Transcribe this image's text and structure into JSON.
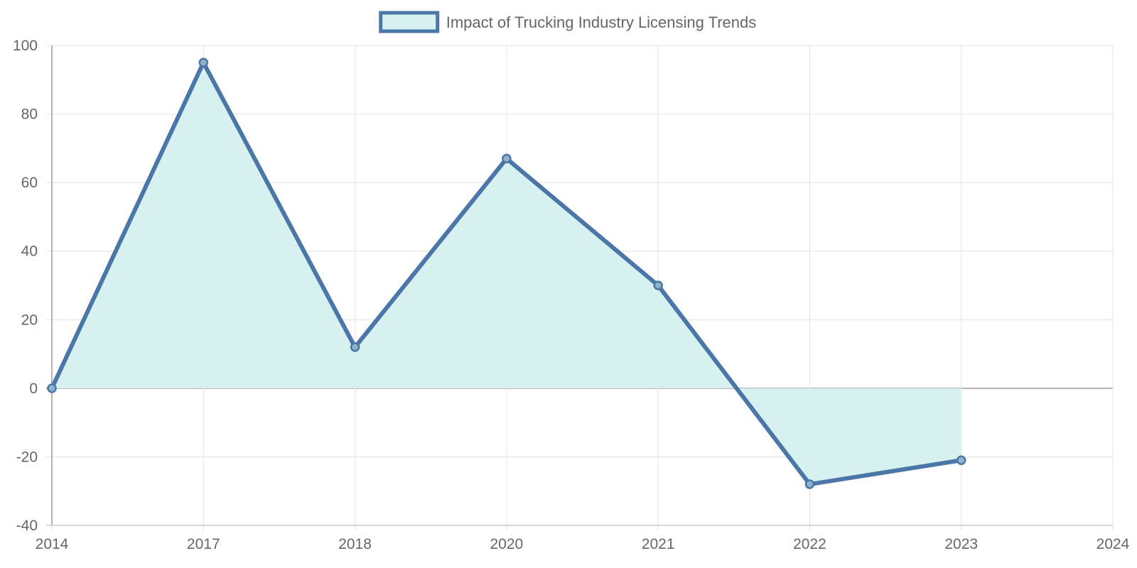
{
  "chart_data": {
    "type": "area",
    "title": "",
    "xlabel": "",
    "ylabel": "",
    "legend": {
      "position": "top-center",
      "entries": [
        "Impact of Trucking Industry Licensing Trends"
      ]
    },
    "x_tick_labels": [
      "2014",
      "2017",
      "2018",
      "2020",
      "2021",
      "2022",
      "2023",
      "2024"
    ],
    "y_tick_labels": [
      "100",
      "80",
      "60",
      "40",
      "20",
      "0",
      "-20",
      "-40"
    ],
    "ylim": [
      -40,
      100
    ],
    "grid": true,
    "series": [
      {
        "name": "Impact of Trucking Industry Licensing Trends",
        "x": [
          "2014",
          "2017",
          "2018",
          "2020",
          "2021",
          "2022",
          "2023"
        ],
        "values": [
          0,
          95,
          12,
          67,
          30,
          -28,
          -21
        ],
        "line_color": "#4a77a8",
        "fill_color": "#d7f0f0"
      }
    ]
  }
}
